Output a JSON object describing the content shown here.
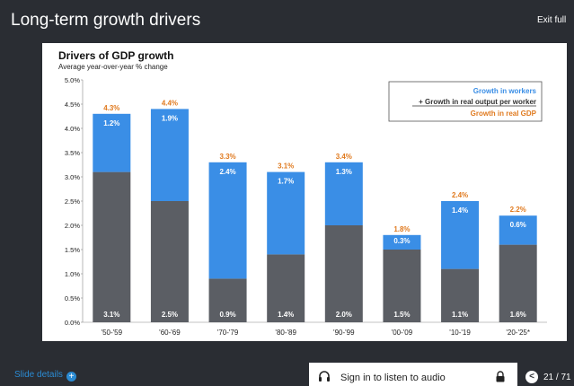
{
  "header": {
    "title": "Long-term growth drivers",
    "exit_label": "Exit full"
  },
  "colors": {
    "workers": "#3a8ee6",
    "productivity": "#5b5e64",
    "gdp": "#e07a1f"
  },
  "chart_data": {
    "type": "bar",
    "title": "Drivers of GDP growth",
    "subtitle": "Average year-over-year % change",
    "categories": [
      "'50-'59",
      "'60-'69",
      "'70-'79",
      "'80-'89",
      "'90-'99",
      "'00-'09",
      "'10-'19",
      "'20-'25*"
    ],
    "series": [
      {
        "name": "+ Growth in real output per worker",
        "values": [
          3.1,
          2.5,
          0.9,
          1.4,
          2.0,
          1.5,
          1.1,
          1.6
        ],
        "labels": [
          "3.1%",
          "2.5%",
          "0.9%",
          "1.4%",
          "2.0%",
          "1.5%",
          "1.1%",
          "1.6%"
        ]
      },
      {
        "name": "Growth in workers",
        "values": [
          1.2,
          1.9,
          2.4,
          1.7,
          1.3,
          0.3,
          1.4,
          0.6
        ],
        "labels": [
          "1.2%",
          "1.9%",
          "2.4%",
          "1.7%",
          "1.3%",
          "0.3%",
          "1.4%",
          "0.6%"
        ]
      }
    ],
    "totals": {
      "name": "Growth in real GDP",
      "values": [
        4.3,
        4.4,
        3.3,
        3.1,
        3.4,
        1.8,
        2.4,
        2.2
      ],
      "labels": [
        "4.3%",
        "4.4%",
        "3.3%",
        "3.1%",
        "3.4%",
        "1.8%",
        "2.4%",
        "2.2%"
      ]
    },
    "ylim": [
      0,
      5
    ],
    "yticks": [
      0,
      0.5,
      1.0,
      1.5,
      2.0,
      2.5,
      3.0,
      3.5,
      4.0,
      4.5,
      5.0
    ],
    "ytick_labels": [
      "0.0%",
      "0.5%",
      "1.0%",
      "1.5%",
      "2.0%",
      "2.5%",
      "3.0%",
      "3.5%",
      "4.0%",
      "4.5%",
      "5.0%"
    ],
    "legend": [
      "Growth in workers",
      "+ Growth in real output per worker",
      "Growth in real GDP"
    ],
    "legend_position": "top-right"
  },
  "footer": {
    "slide_details": "Slide details",
    "plus_icon": "+",
    "audio_label": "Sign in to listen to audio",
    "back_icon": "<",
    "pager": "21 / 71"
  }
}
